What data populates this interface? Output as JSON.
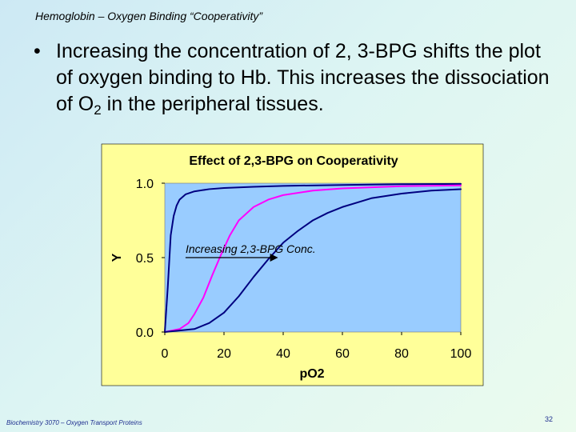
{
  "slide": {
    "title": "Hemoglobin – Oxygen Binding “Cooperativity”",
    "bullet_symbol": "•",
    "bullet_prefix": "Increasing the concentration of 2, 3-BPG shifts the plot of oxygen binding to Hb.  This increases the dissociation of O",
    "bullet_subscript": "2",
    "bullet_suffix": " in the peripheral tissues.",
    "footer_left": "Biochemistry 3070 – Oxygen Transport Proteins",
    "page_number": "32"
  },
  "colors": {
    "background_start": "#cde9f4",
    "background_end": "#ebfbee",
    "chart_frame_fill": "#ffff99",
    "plot_area_fill": "#99ccff",
    "curve_dark_blue": "#000080",
    "curve_magenta": "#ff00ff",
    "annotation_color": "#000000",
    "footer_color": "#1f2f8f"
  },
  "chart_data": {
    "type": "line",
    "title": "Effect of 2,3-BPG on Cooperativity",
    "xlabel": "pO2",
    "ylabel": "Y",
    "xlim": [
      0,
      100
    ],
    "ylim": [
      0,
      1
    ],
    "x_ticks": [
      0,
      20,
      40,
      60,
      80,
      100
    ],
    "y_ticks": [
      0.0,
      0.5,
      1.0
    ],
    "x_tick_labels": [
      "0",
      "20",
      "40",
      "60",
      "80",
      "100"
    ],
    "y_tick_labels": [
      "0.0",
      "0.5",
      "1.0"
    ],
    "grid": false,
    "legend": "none",
    "annotation": {
      "text": "Increasing 2,3-BPG Conc.",
      "arrow_from": {
        "x": 7,
        "y": 0.5
      },
      "arrow_to": {
        "x": 38,
        "y": 0.5
      }
    },
    "series": [
      {
        "color": "#000080",
        "points": [
          {
            "x": 0,
            "y": 0.0
          },
          {
            "x": 1,
            "y": 0.3
          },
          {
            "x": 2,
            "y": 0.65
          },
          {
            "x": 3,
            "y": 0.78
          },
          {
            "x": 4,
            "y": 0.85
          },
          {
            "x": 5,
            "y": 0.89
          },
          {
            "x": 7,
            "y": 0.925
          },
          {
            "x": 10,
            "y": 0.945
          },
          {
            "x": 15,
            "y": 0.96
          },
          {
            "x": 20,
            "y": 0.968
          },
          {
            "x": 30,
            "y": 0.976
          },
          {
            "x": 40,
            "y": 0.982
          },
          {
            "x": 60,
            "y": 0.988
          },
          {
            "x": 80,
            "y": 0.993
          },
          {
            "x": 100,
            "y": 0.995
          }
        ]
      },
      {
        "color": "#ff00ff",
        "points": [
          {
            "x": 0,
            "y": 0.0
          },
          {
            "x": 5,
            "y": 0.02
          },
          {
            "x": 8,
            "y": 0.06
          },
          {
            "x": 10,
            "y": 0.12
          },
          {
            "x": 13,
            "y": 0.23
          },
          {
            "x": 16,
            "y": 0.38
          },
          {
            "x": 19,
            "y": 0.52
          },
          {
            "x": 22,
            "y": 0.65
          },
          {
            "x": 25,
            "y": 0.75
          },
          {
            "x": 30,
            "y": 0.84
          },
          {
            "x": 35,
            "y": 0.89
          },
          {
            "x": 40,
            "y": 0.92
          },
          {
            "x": 50,
            "y": 0.95
          },
          {
            "x": 60,
            "y": 0.965
          },
          {
            "x": 80,
            "y": 0.98
          },
          {
            "x": 100,
            "y": 0.985
          }
        ]
      },
      {
        "color": "#000080",
        "points": [
          {
            "x": 0,
            "y": 0.0
          },
          {
            "x": 10,
            "y": 0.02
          },
          {
            "x": 15,
            "y": 0.06
          },
          {
            "x": 20,
            "y": 0.13
          },
          {
            "x": 25,
            "y": 0.24
          },
          {
            "x": 30,
            "y": 0.37
          },
          {
            "x": 35,
            "y": 0.49
          },
          {
            "x": 40,
            "y": 0.6
          },
          {
            "x": 45,
            "y": 0.68
          },
          {
            "x": 50,
            "y": 0.75
          },
          {
            "x": 55,
            "y": 0.8
          },
          {
            "x": 60,
            "y": 0.84
          },
          {
            "x": 70,
            "y": 0.9
          },
          {
            "x": 80,
            "y": 0.93
          },
          {
            "x": 90,
            "y": 0.95
          },
          {
            "x": 100,
            "y": 0.96
          }
        ]
      }
    ]
  }
}
